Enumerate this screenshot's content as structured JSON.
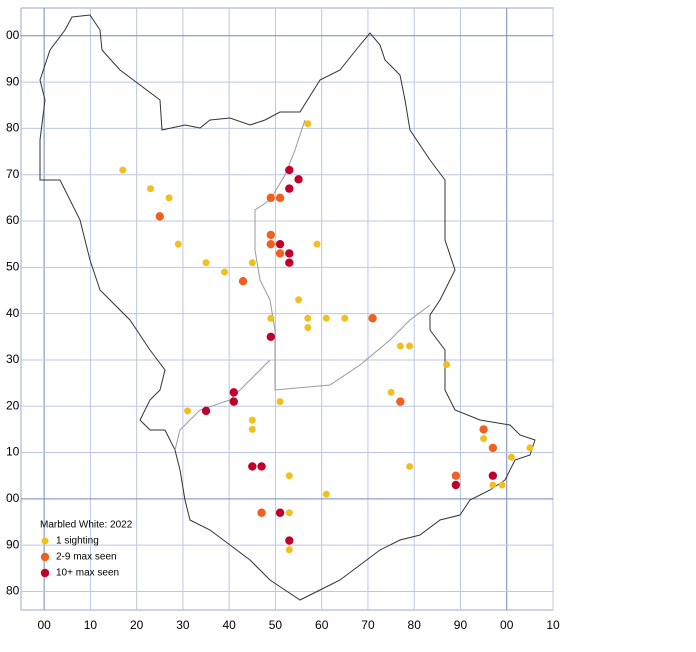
{
  "chart_data": {
    "type": "scatter",
    "legend_title": "Marbled White:  2022",
    "xlim": [
      -5,
      110
    ],
    "ylim": [
      76,
      206
    ],
    "xticks": [
      {
        "value": 0,
        "label": "00"
      },
      10,
      20,
      30,
      40,
      50,
      60,
      70,
      80,
      90,
      {
        "value": 100,
        "label": "00"
      },
      {
        "value": 110,
        "label": "10"
      }
    ],
    "yticks": [
      80,
      90,
      {
        "value": 100,
        "label": "00"
      },
      {
        "value": 110,
        "label": "10"
      },
      {
        "value": 120,
        "label": "20"
      },
      {
        "value": 130,
        "label": "30"
      },
      {
        "value": 140,
        "label": "40"
      },
      {
        "value": 150,
        "label": "50"
      },
      {
        "value": 160,
        "label": "60"
      },
      {
        "value": 170,
        "label": "70"
      },
      {
        "value": 180,
        "label": "80"
      },
      {
        "value": 190,
        "label": "90"
      },
      {
        "value": 200,
        "label": "00"
      }
    ],
    "grid": true,
    "series": [
      {
        "name": "1 sighting",
        "color": "#f0c020",
        "x": [
          57,
          17,
          23,
          27,
          29,
          35,
          39,
          45,
          59,
          55,
          49,
          57,
          57,
          61,
          65,
          77,
          79,
          87,
          75,
          31,
          51,
          45,
          45,
          95,
          105,
          101,
          79,
          53,
          61,
          97,
          99,
          53,
          53
        ],
        "values": [
          181,
          171,
          167,
          165,
          155,
          151,
          149,
          151,
          155,
          143,
          139,
          139,
          137,
          139,
          139,
          133,
          133,
          129,
          123,
          119,
          121,
          117,
          115,
          113,
          111,
          109,
          107,
          105,
          101,
          103,
          103,
          97,
          89
        ]
      },
      {
        "name": "2-9 max seen",
        "color": "#f06020",
        "x": [
          49,
          51,
          25,
          49,
          49,
          51,
          43,
          71,
          77,
          95,
          97,
          89,
          47
        ],
        "values": [
          165,
          165,
          161,
          157,
          155,
          153,
          147,
          139,
          121,
          115,
          111,
          105,
          97
        ]
      },
      {
        "name": "10+ max seen",
        "color": "#c0002a",
        "x": [
          53,
          55,
          53,
          51,
          53,
          53,
          49,
          41,
          41,
          35,
          45,
          47,
          97,
          89,
          51,
          53
        ],
        "values": [
          171,
          169,
          167,
          155,
          153,
          151,
          135,
          123,
          121,
          119,
          107,
          107,
          105,
          103,
          97,
          91
        ]
      }
    ]
  }
}
